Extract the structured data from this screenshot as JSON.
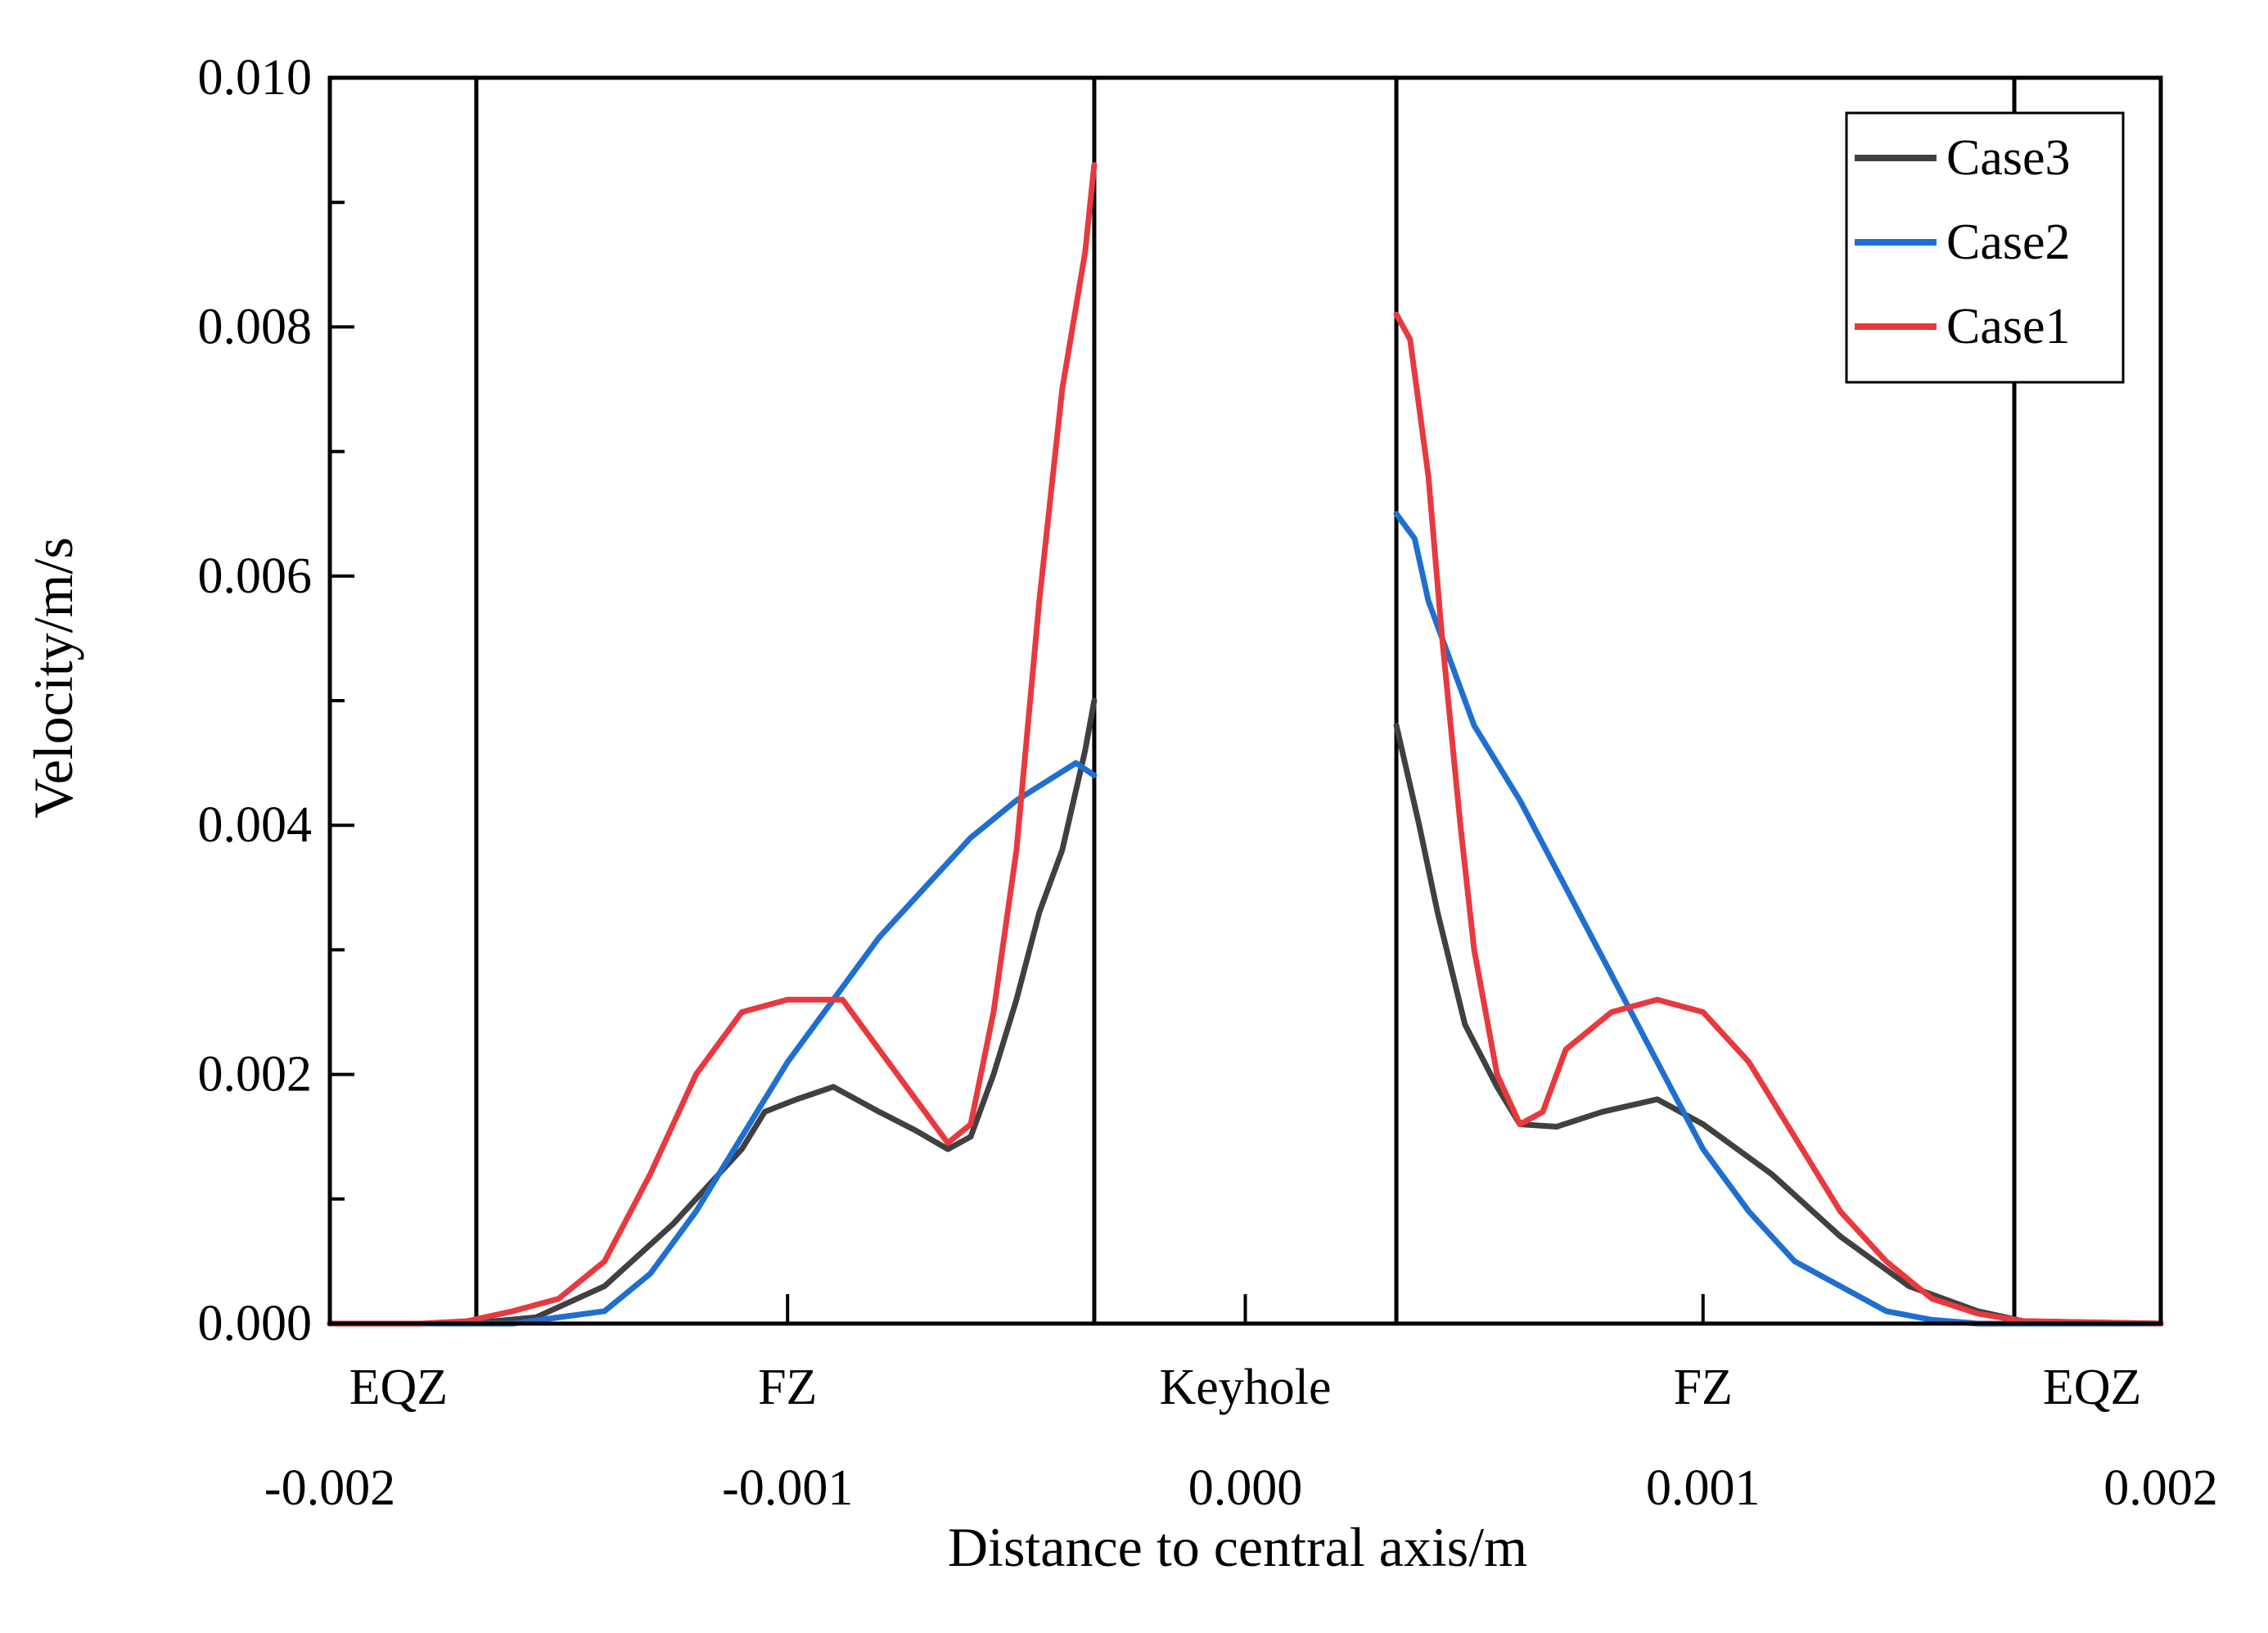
{
  "chart_data": {
    "type": "line",
    "title": "",
    "xlabel": "Distance to central axis/m",
    "ylabel": "Velocity/m/s",
    "xlim": [
      -0.002,
      0.002
    ],
    "ylim": [
      0,
      0.01
    ],
    "x_ticks": [
      "-0.002",
      "-0.001",
      "0.000",
      "0.001",
      "0.002"
    ],
    "y_ticks": [
      "0.000",
      "0.002",
      "0.004",
      "0.006",
      "0.008",
      "0.010"
    ],
    "grid": false,
    "legend_position": "top-right",
    "zone_boundaries": [
      -0.00168,
      -0.00033,
      0.00033,
      0.00168
    ],
    "zones": [
      {
        "label": "EQZ",
        "x": -0.00185
      },
      {
        "label": "FZ",
        "x": -0.001
      },
      {
        "label": "Keyhole",
        "x": 0
      },
      {
        "label": "FZ",
        "x": 0.001
      },
      {
        "label": "EQZ",
        "x": 0.00185
      }
    ],
    "series": [
      {
        "name": "Case3",
        "color": "#404040",
        "segments": [
          [
            [
              -0.002,
              0
            ],
            [
              -0.0017,
              0
            ],
            [
              -0.00155,
              5e-05
            ],
            [
              -0.0014,
              0.0003
            ],
            [
              -0.00125,
              0.0008
            ],
            [
              -0.0011,
              0.0014
            ],
            [
              -0.00105,
              0.0017
            ],
            [
              -0.00098,
              0.0018
            ],
            [
              -0.0009,
              0.0019
            ],
            [
              -0.0008,
              0.0017
            ],
            [
              -0.00072,
              0.00155
            ],
            [
              -0.00065,
              0.0014
            ],
            [
              -0.0006,
              0.0015
            ],
            [
              -0.00055,
              0.002
            ],
            [
              -0.0005,
              0.0026
            ],
            [
              -0.00045,
              0.0033
            ],
            [
              -0.0004,
              0.0038
            ],
            [
              -0.00035,
              0.0046
            ],
            [
              -0.00033,
              0.005
            ]
          ],
          [
            [
              0.00033,
              0.0048
            ],
            [
              0.00038,
              0.004
            ],
            [
              0.00042,
              0.0033
            ],
            [
              0.00048,
              0.0024
            ],
            [
              0.00055,
              0.0019
            ],
            [
              0.0006,
              0.0016
            ],
            [
              0.00068,
              0.00158
            ],
            [
              0.00078,
              0.0017
            ],
            [
              0.0009,
              0.0018
            ],
            [
              0.001,
              0.0016
            ],
            [
              0.00115,
              0.0012
            ],
            [
              0.0013,
              0.0007
            ],
            [
              0.00145,
              0.0003
            ],
            [
              0.0016,
              0.0001
            ],
            [
              0.0017,
              2e-05
            ],
            [
              0.002,
              0
            ]
          ]
        ]
      },
      {
        "name": "Case2",
        "color": "#1F6FD0",
        "segments": [
          [
            [
              -0.002,
              0
            ],
            [
              -0.0016,
              0
            ],
            [
              -0.0015,
              5e-05
            ],
            [
              -0.0014,
              0.0001
            ],
            [
              -0.0013,
              0.0004
            ],
            [
              -0.0012,
              0.0009
            ],
            [
              -0.0011,
              0.0015
            ],
            [
              -0.001,
              0.0021
            ],
            [
              -0.0009,
              0.0026
            ],
            [
              -0.0008,
              0.0031
            ],
            [
              -0.0007,
              0.0035
            ],
            [
              -0.0006,
              0.0039
            ],
            [
              -0.0005,
              0.0042
            ],
            [
              -0.00037,
              0.0045
            ],
            [
              -0.00033,
              0.0044
            ]
          ],
          [
            [
              0.00033,
              0.0065
            ],
            [
              0.00037,
              0.0063
            ],
            [
              0.0004,
              0.0058
            ],
            [
              0.0005,
              0.0048
            ],
            [
              0.0006,
              0.0042
            ],
            [
              0.0007,
              0.0035
            ],
            [
              0.0008,
              0.0028
            ],
            [
              0.0009,
              0.0021
            ],
            [
              0.001,
              0.0014
            ],
            [
              0.0011,
              0.0009
            ],
            [
              0.0012,
              0.0005
            ],
            [
              0.0013,
              0.0003
            ],
            [
              0.0014,
              0.0001
            ],
            [
              0.0015,
              3e-05
            ],
            [
              0.0016,
              0
            ],
            [
              0.002,
              0
            ]
          ]
        ]
      },
      {
        "name": "Case1",
        "color": "#E8393E",
        "segments": [
          [
            [
              -0.002,
              0
            ],
            [
              -0.0018,
              0
            ],
            [
              -0.0017,
              2e-05
            ],
            [
              -0.0016,
              0.0001
            ],
            [
              -0.0015,
              0.0002
            ],
            [
              -0.0014,
              0.0005
            ],
            [
              -0.0013,
              0.0012
            ],
            [
              -0.0012,
              0.002
            ],
            [
              -0.0011,
              0.0025
            ],
            [
              -0.001,
              0.0026
            ],
            [
              -0.00088,
              0.0026
            ],
            [
              -0.0008,
              0.0022
            ],
            [
              -0.00072,
              0.0018
            ],
            [
              -0.00065,
              0.00145
            ],
            [
              -0.0006,
              0.0016
            ],
            [
              -0.00055,
              0.0025
            ],
            [
              -0.0005,
              0.0038
            ],
            [
              -0.00045,
              0.0058
            ],
            [
              -0.0004,
              0.0075
            ],
            [
              -0.00035,
              0.0086
            ],
            [
              -0.00033,
              0.0093
            ]
          ],
          [
            [
              0.00033,
              0.0081
            ],
            [
              0.00036,
              0.0079
            ],
            [
              0.0004,
              0.0068
            ],
            [
              0.00043,
              0.0055
            ],
            [
              0.00047,
              0.004
            ],
            [
              0.0005,
              0.003
            ],
            [
              0.00055,
              0.002
            ],
            [
              0.0006,
              0.0016
            ],
            [
              0.00065,
              0.0017
            ],
            [
              0.0007,
              0.0022
            ],
            [
              0.0008,
              0.0025
            ],
            [
              0.0009,
              0.0026
            ],
            [
              0.001,
              0.0025
            ],
            [
              0.0011,
              0.0021
            ],
            [
              0.0012,
              0.0015
            ],
            [
              0.0013,
              0.0009
            ],
            [
              0.0014,
              0.0005
            ],
            [
              0.0015,
              0.0002
            ],
            [
              0.0016,
              8e-05
            ],
            [
              0.0017,
              2e-05
            ],
            [
              0.002,
              0
            ]
          ]
        ]
      }
    ]
  }
}
